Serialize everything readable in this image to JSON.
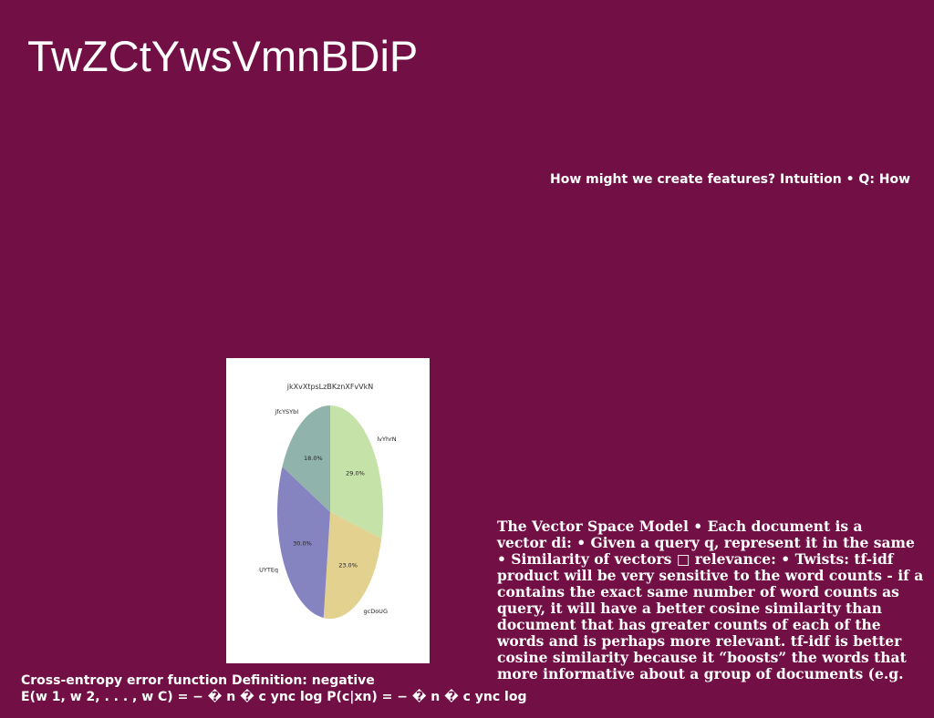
{
  "slide": {
    "title": "TwZCtYwsVmnBDiP",
    "subtitle": "How might we create features? Intuition • Q: How",
    "body_lines": [
      "The Vector Space Model • Each document is a",
      "vector di: • Given a query q, represent it in the same",
      "• Similarity of vectors □ relevance: • Twists:  tf-idf",
      "product will be very sensitive to the word counts - if a",
      "contains the exact same number of word counts as",
      "query, it will have a better cosine similarity than",
      "document that has greater counts of each of the",
      "words and is perhaps more relevant. tf-idf is better",
      "cosine similarity because it “boosts” the words that",
      "more informative about a group of documents (e.g."
    ],
    "footer_lines": [
      "Cross-entropy error function Definition: negative",
      "E(w 1, w 2, . . . , w C) = − � n � c ync log P(c|xn) = − � n � c ync log"
    ]
  },
  "chart_data": {
    "type": "pie",
    "title": "jkXvXtpsLzBKznXFvVkN",
    "slices": [
      {
        "label": "lvYhrN",
        "value": 29.0,
        "pct_label": "29.0%",
        "color": "#c5e3a8"
      },
      {
        "label": "gcDoUG",
        "value": 23.0,
        "pct_label": "23.0%",
        "color": "#e2d18f"
      },
      {
        "label": "UYTEq",
        "value": 30.0,
        "pct_label": "30.0%",
        "color": "#8683c1"
      },
      {
        "label": "jfcYSYbI",
        "value": 18.0,
        "pct_label": "18.0%",
        "color": "#90b3ac"
      }
    ],
    "start_angle": "top",
    "direction": "clockwise"
  }
}
